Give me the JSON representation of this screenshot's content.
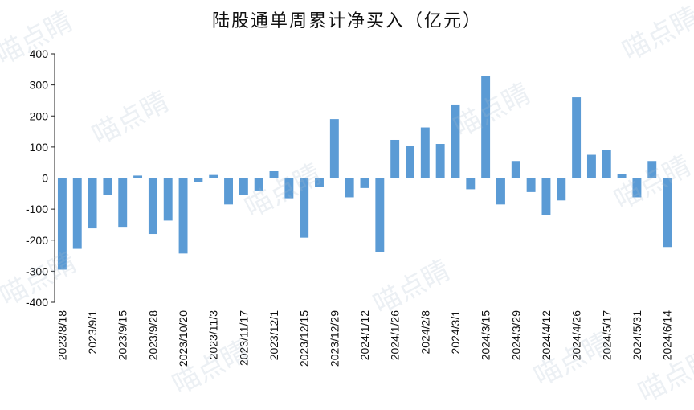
{
  "watermark": "喵点睛",
  "chart_data": {
    "type": "bar",
    "title": "陆股通单周累计净买入（亿元）",
    "xlabel": "",
    "ylabel": "",
    "ylim": [
      -400,
      400
    ],
    "yticks": [
      400,
      300,
      200,
      100,
      0,
      -100,
      -200,
      -300,
      -400
    ],
    "bar_color": "#5b9bd5",
    "grid": false,
    "legend": "none",
    "x_tick_labels": [
      "2023/8/18",
      "2023/9/1",
      "2023/9/15",
      "2023/9/28",
      "2023/10/20",
      "2023/11/3",
      "2023/11/17",
      "2023/12/1",
      "2023/12/15",
      "2023/12/29",
      "2024/1/12",
      "2024/1/26",
      "2024/2/8",
      "2024/3/1",
      "2024/3/15",
      "2024/3/29",
      "2024/4/12",
      "2024/4/26",
      "2024/5/17",
      "2024/5/31",
      "2024/6/14"
    ],
    "values": [
      -295,
      -228,
      -162,
      -55,
      -157,
      8,
      -180,
      -137,
      -243,
      -12,
      10,
      -85,
      -55,
      -40,
      22,
      -65,
      -192,
      -28,
      190,
      -62,
      -32,
      -237,
      123,
      103,
      163,
      110,
      237,
      -36,
      330,
      -85,
      55,
      -45,
      -120,
      -72,
      260,
      75,
      90,
      12,
      -62,
      55,
      -222
    ]
  }
}
